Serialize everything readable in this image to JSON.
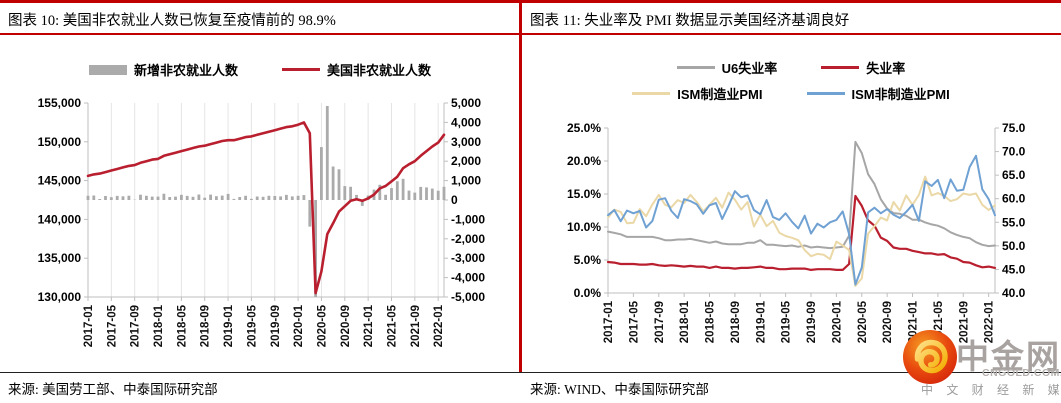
{
  "colors": {
    "accent_red": "#C00000",
    "series_red": "#B91F2E",
    "series_gray": "#ABABAB",
    "series_tan": "#EBD8A7",
    "series_blue": "#70A1D3",
    "grid": "#E4E4E4",
    "axis": "#BFBFBF"
  },
  "panels": [
    {
      "title": "图表 10: 美国非农就业人数已恢复至疫情前的 98.9%",
      "source": "来源: 美国劳工部、中泰国际研究部"
    },
    {
      "title": "图表 11: 失业率及 PMI 数据显示美国经济基调良好",
      "source": "来源: WIND、中泰国际研究部"
    }
  ],
  "watermark": {
    "name": "中金网",
    "domain": "CNGOLD.COM.CN",
    "tagline": "中 文 财 经 新 媒 体"
  },
  "chart_data": [
    {
      "type": "bar",
      "subtype": "bar+line combo",
      "title": "图表 10: 美国非农就业人数已恢复至疫情前的 98.9%",
      "x": [
        "2017-01",
        "2017-02",
        "2017-03",
        "2017-04",
        "2017-05",
        "2017-06",
        "2017-07",
        "2017-08",
        "2017-09",
        "2017-10",
        "2017-11",
        "2017-12",
        "2018-01",
        "2018-02",
        "2018-03",
        "2018-04",
        "2018-05",
        "2018-06",
        "2018-07",
        "2018-08",
        "2018-09",
        "2018-10",
        "2018-11",
        "2018-12",
        "2019-01",
        "2019-02",
        "2019-03",
        "2019-04",
        "2019-05",
        "2019-06",
        "2019-07",
        "2019-08",
        "2019-09",
        "2019-10",
        "2019-11",
        "2019-12",
        "2020-01",
        "2020-02",
        "2020-03",
        "2020-04",
        "2020-05",
        "2020-06",
        "2020-07",
        "2020-08",
        "2020-09",
        "2020-10",
        "2020-11",
        "2020-12",
        "2021-01",
        "2021-02",
        "2021-03",
        "2021-04",
        "2021-05",
        "2021-06",
        "2021-07",
        "2021-08",
        "2021-09",
        "2021-10",
        "2021-11",
        "2021-12",
        "2022-01",
        "2022-02"
      ],
      "x_ticks": [
        "2017-01",
        "2017-05",
        "2017-09",
        "2018-01",
        "2018-05",
        "2018-09",
        "2019-01",
        "2019-05",
        "2019-09",
        "2020-01",
        "2020-05",
        "2020-09",
        "2021-01",
        "2021-05",
        "2021-09",
        "2022-01"
      ],
      "left_axis": {
        "min": 130000,
        "max": 155000,
        "tick_labels": [
          "155,000",
          "150,000",
          "145,000",
          "140,000",
          "135,000",
          "130,000"
        ]
      },
      "right_axis": {
        "min": -5000,
        "max": 5000,
        "tick_labels": [
          "5,000",
          "4,000",
          "3,000",
          "2,000",
          "1,000",
          "0",
          "-1,000",
          "-2,000",
          "-3,000",
          "-4,000",
          "-5,000"
        ]
      },
      "grid": "vertical",
      "legend_position": "top",
      "series": [
        {
          "name": "新增非农就业人数",
          "kind": "bar",
          "axis": "right",
          "color": "#ABABAB",
          "values": [
            216,
            232,
            50,
            207,
            145,
            210,
            190,
            221,
            14,
            271,
            216,
            175,
            176,
            324,
            155,
            175,
            268,
            213,
            165,
            286,
            119,
            277,
            196,
            227,
            312,
            56,
            153,
            216,
            62,
            178,
            166,
            219,
            208,
            185,
            261,
            184,
            214,
            251,
            -1373,
            -20500,
            2725,
            4846,
            1726,
            1583,
            716,
            680,
            264,
            -306,
            233,
            536,
            785,
            269,
            614,
            962,
            1091,
            483,
            379,
            677,
            647,
            588,
            481,
            678
          ]
        },
        {
          "name": "美国非农就业人数",
          "kind": "line",
          "axis": "left",
          "color": "#B91F2E",
          "width": 2.6,
          "values": [
            145600,
            145800,
            145900,
            146100,
            146300,
            146500,
            146700,
            146900,
            147000,
            147300,
            147500,
            147700,
            147800,
            148200,
            148400,
            148600,
            148800,
            149000,
            149200,
            149400,
            149500,
            149700,
            149900,
            150100,
            150200,
            150200,
            150400,
            150600,
            150700,
            150900,
            151100,
            151300,
            151500,
            151700,
            151900,
            152000,
            152200,
            152500,
            151100,
            130500,
            133300,
            138100,
            139500,
            141000,
            141700,
            142400,
            142600,
            142400,
            142700,
            143200,
            144000,
            144300,
            144900,
            145500,
            146600,
            147100,
            147500,
            148200,
            148800,
            149400,
            149900,
            150900
          ]
        }
      ]
    },
    {
      "type": "line",
      "title": "图表 11: 失业率及 PMI 数据显示美国经济基调良好",
      "x": [
        "2017-01",
        "2017-02",
        "2017-03",
        "2017-04",
        "2017-05",
        "2017-06",
        "2017-07",
        "2017-08",
        "2017-09",
        "2017-10",
        "2017-11",
        "2017-12",
        "2018-01",
        "2018-02",
        "2018-03",
        "2018-04",
        "2018-05",
        "2018-06",
        "2018-07",
        "2018-08",
        "2018-09",
        "2018-10",
        "2018-11",
        "2018-12",
        "2019-01",
        "2019-02",
        "2019-03",
        "2019-04",
        "2019-05",
        "2019-06",
        "2019-07",
        "2019-08",
        "2019-09",
        "2019-10",
        "2019-11",
        "2019-12",
        "2020-01",
        "2020-02",
        "2020-03",
        "2020-04",
        "2020-05",
        "2020-06",
        "2020-07",
        "2020-08",
        "2020-09",
        "2020-10",
        "2020-11",
        "2020-12",
        "2021-01",
        "2021-02",
        "2021-03",
        "2021-04",
        "2021-05",
        "2021-06",
        "2021-07",
        "2021-08",
        "2021-09",
        "2021-10",
        "2021-11",
        "2021-12",
        "2022-01",
        "2022-02"
      ],
      "x_ticks": [
        "2017-01",
        "2017-05",
        "2017-09",
        "2018-01",
        "2018-05",
        "2018-09",
        "2019-01",
        "2019-05",
        "2019-09",
        "2020-01",
        "2020-05",
        "2020-09",
        "2021-01",
        "2021-05",
        "2021-09",
        "2022-01"
      ],
      "left_axis": {
        "min": 0,
        "max": 25,
        "tick_labels": [
          "25.0%",
          "20.0%",
          "15.0%",
          "10.0%",
          "5.0%",
          "0.0%"
        ]
      },
      "right_axis": {
        "min": 40,
        "max": 75,
        "tick_labels": [
          "75.0",
          "70.0",
          "65.0",
          "60.0",
          "55.0",
          "50.0",
          "45.0",
          "40.0"
        ]
      },
      "grid": "none",
      "legend_position": "top",
      "series": [
        {
          "name": "U6失业率",
          "kind": "line",
          "axis": "left",
          "color": "#A6A6A6",
          "width": 2,
          "values": [
            9.3,
            9.1,
            8.9,
            8.5,
            8.5,
            8.5,
            8.5,
            8.5,
            8.3,
            8.0,
            8.0,
            8.1,
            8.1,
            8.2,
            8.0,
            7.8,
            7.6,
            7.8,
            7.5,
            7.4,
            7.4,
            7.4,
            7.6,
            7.6,
            8.0,
            7.3,
            7.3,
            7.2,
            7.1,
            7.2,
            7.0,
            7.2,
            6.9,
            7.0,
            6.9,
            6.8,
            6.9,
            7.0,
            8.7,
            22.9,
            21.2,
            18.0,
            16.5,
            14.2,
            12.8,
            12.1,
            12.0,
            11.7,
            11.1,
            11.1,
            10.7,
            10.4,
            10.2,
            9.8,
            9.2,
            8.8,
            8.5,
            8.3,
            7.7,
            7.3,
            7.1,
            7.2
          ]
        },
        {
          "name": "失业率",
          "kind": "line",
          "axis": "left",
          "color": "#B91F2E",
          "width": 2.2,
          "values": [
            4.7,
            4.6,
            4.4,
            4.4,
            4.4,
            4.3,
            4.3,
            4.4,
            4.2,
            4.1,
            4.2,
            4.1,
            4.0,
            4.1,
            4.0,
            4.0,
            3.8,
            4.0,
            3.8,
            3.8,
            3.7,
            3.8,
            3.8,
            3.9,
            4.0,
            3.8,
            3.8,
            3.6,
            3.6,
            3.7,
            3.7,
            3.7,
            3.5,
            3.6,
            3.6,
            3.6,
            3.5,
            3.5,
            4.4,
            14.7,
            13.2,
            11.0,
            10.2,
            8.4,
            7.9,
            6.9,
            6.7,
            6.7,
            6.4,
            6.2,
            6.0,
            6.0,
            5.8,
            5.9,
            5.4,
            5.2,
            4.7,
            4.6,
            4.2,
            3.9,
            4.0,
            3.8
          ]
        },
        {
          "name": "ISM制造业PMI",
          "kind": "line",
          "axis": "right",
          "color": "#EBD8A7",
          "width": 2,
          "values": [
            56.0,
            57.7,
            57.2,
            54.8,
            54.9,
            57.8,
            56.3,
            58.8,
            60.8,
            58.7,
            58.2,
            59.7,
            59.1,
            60.8,
            59.3,
            57.3,
            58.7,
            60.2,
            58.1,
            61.3,
            59.8,
            57.7,
            59.3,
            54.1,
            56.6,
            54.2,
            55.3,
            52.8,
            52.1,
            51.7,
            51.2,
            49.1,
            47.8,
            48.3,
            48.1,
            47.2,
            50.9,
            50.1,
            49.1,
            41.5,
            43.1,
            52.6,
            54.2,
            56.0,
            55.4,
            59.3,
            57.5,
            60.7,
            58.7,
            60.8,
            64.7,
            60.7,
            61.2,
            60.6,
            59.5,
            59.9,
            61.1,
            60.8,
            61.1,
            58.7,
            57.6,
            58.6
          ]
        },
        {
          "name": "ISM非制造业PMI",
          "kind": "line",
          "axis": "right",
          "color": "#70A1D3",
          "width": 2,
          "values": [
            56.5,
            57.6,
            55.2,
            57.5,
            56.9,
            57.4,
            53.9,
            55.3,
            59.8,
            60.1,
            57.4,
            55.9,
            59.9,
            59.5,
            58.8,
            56.8,
            58.6,
            59.1,
            55.7,
            58.5,
            61.6,
            60.3,
            60.7,
            57.6,
            56.7,
            59.7,
            56.1,
            55.5,
            56.9,
            55.1,
            53.7,
            56.4,
            52.6,
            54.7,
            53.9,
            55.0,
            55.5,
            57.3,
            52.5,
            41.8,
            45.4,
            57.1,
            58.1,
            56.9,
            57.8,
            56.6,
            55.9,
            57.2,
            58.7,
            55.3,
            63.7,
            62.7,
            64.0,
            60.1,
            64.1,
            61.7,
            61.9,
            66.7,
            69.1,
            62.0,
            59.9,
            56.5
          ]
        }
      ]
    }
  ]
}
